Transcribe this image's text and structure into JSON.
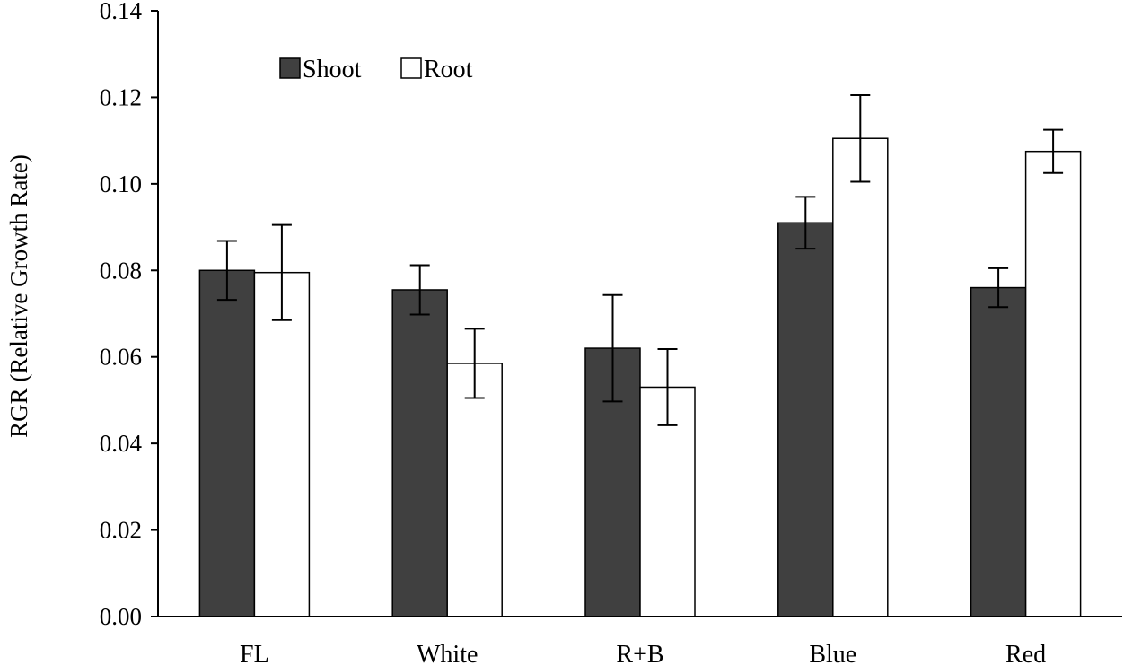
{
  "chart_data": {
    "type": "bar",
    "title": "",
    "xlabel": "",
    "ylabel": "RGR (Relative Growth Rate)",
    "categories": [
      "FL",
      "White",
      "R+B",
      "Blue",
      "Red"
    ],
    "series": [
      {
        "name": "Shoot",
        "color": "#404040",
        "values": [
          0.08,
          0.0755,
          0.062,
          0.091,
          0.076
        ],
        "errors": [
          0.0068,
          0.0057,
          0.0123,
          0.006,
          0.0045
        ]
      },
      {
        "name": "Root",
        "color": "#ffffff",
        "values": [
          0.0795,
          0.0585,
          0.053,
          0.1105,
          0.1075
        ],
        "errors": [
          0.011,
          0.008,
          0.0088,
          0.01,
          0.005
        ]
      }
    ],
    "ylim": [
      0,
      0.14
    ],
    "yticks": [
      "0.00",
      "0.02",
      "0.04",
      "0.06",
      "0.08",
      "0.10",
      "0.12",
      "0.14"
    ],
    "ytick_values": [
      0,
      0.02,
      0.04,
      0.06,
      0.08,
      0.1,
      0.12,
      0.14
    ],
    "legend_position": "top-left",
    "grid": false
  }
}
